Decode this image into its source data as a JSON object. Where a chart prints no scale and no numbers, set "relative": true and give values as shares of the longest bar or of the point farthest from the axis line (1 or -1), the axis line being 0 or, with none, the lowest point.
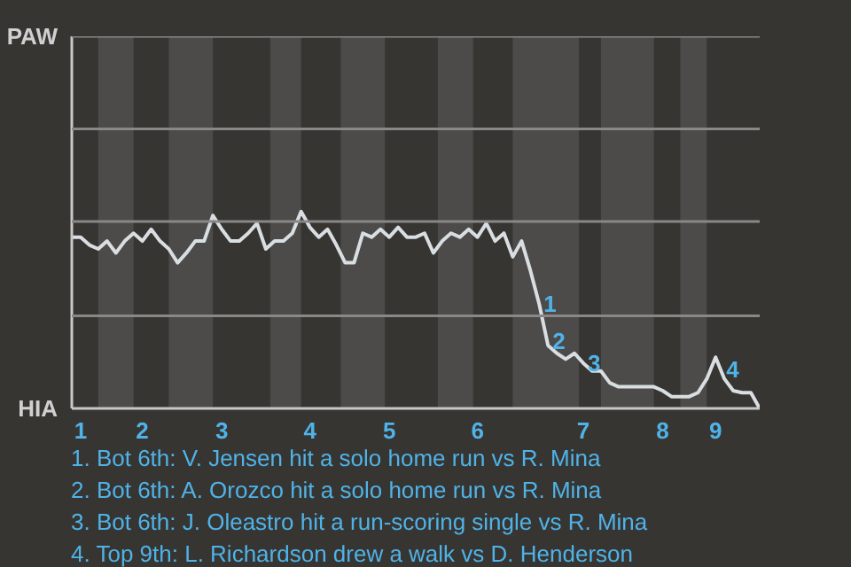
{
  "chart_data": {
    "type": "line",
    "relative": true,
    "categories": [
      null,
      "1",
      null,
      null,
      null,
      null,
      null,
      null,
      "2",
      null,
      null,
      null,
      null,
      null,
      null,
      null,
      null,
      "3",
      null,
      null,
      null,
      null,
      null,
      null,
      null,
      null,
      null,
      "4",
      null,
      null,
      null,
      null,
      null,
      null,
      null,
      null,
      "5",
      null,
      null,
      null,
      null,
      null,
      null,
      null,
      null,
      null,
      "6",
      null,
      null,
      null,
      null,
      null,
      null,
      null,
      null,
      null,
      null,
      null,
      "7",
      null,
      null,
      null,
      null,
      null,
      null,
      null,
      null,
      "8",
      null,
      null,
      null,
      null,
      null,
      "9",
      null,
      null,
      null,
      null,
      null
    ],
    "series": [
      {
        "color": "#d8dee2",
        "values": [
          0.87,
          0.87,
          0.83,
          0.81,
          0.85,
          0.79,
          0.85,
          0.89,
          0.85,
          0.91,
          0.85,
          0.81,
          0.74,
          0.79,
          0.85,
          0.85,
          0.98,
          0.91,
          0.85,
          0.85,
          0.89,
          0.94,
          0.81,
          0.85,
          0.85,
          0.89,
          1,
          0.92,
          0.87,
          0.91,
          0.83,
          0.74,
          0.74,
          0.89,
          0.87,
          0.91,
          0.87,
          0.92,
          0.87,
          0.87,
          0.89,
          0.79,
          0.85,
          0.89,
          0.87,
          0.91,
          0.87,
          0.94,
          0.85,
          0.89,
          0.77,
          0.85,
          0.7,
          0.53,
          0.32,
          0.28,
          0.25,
          0.28,
          0.23,
          0.19,
          0.19,
          0.13,
          0.11,
          0.11,
          0.11,
          0.11,
          0.11,
          0.09,
          0.06,
          0.06,
          0.06,
          0.08,
          0.15,
          0.26,
          0.15,
          0.09,
          0.08,
          0.08,
          0
        ]
      }
    ],
    "marker": "none",
    "line_style": "solid",
    "ref_lines": [
      {
        "axis": "y",
        "value": 0.47,
        "color": "#8a8886"
      },
      {
        "axis": "y",
        "value": 0.95,
        "color": "#8a8886"
      },
      {
        "axis": "y",
        "value": 1.42,
        "color": "#8a8886"
      },
      {
        "axis": "y",
        "value": 1.89,
        "color": "#8a8886"
      }
    ],
    "annotations": [
      "PAW",
      "HIA",
      {
        "text": "1",
        "y": 0.53
      },
      {
        "text": "2",
        "y": 0.34
      },
      {
        "text": "3",
        "y": 0.23
      },
      {
        "text": "4",
        "x": "9",
        "y": 0.2
      },
      "1. Bot 6th: V. Jensen hit a solo home run vs R. Mina",
      "2. Bot 6th: A. Orozco hit a solo home run vs R. Mina",
      "3. Bot 6th: J. Oleastro hit a run-scoring single vs R. Mina",
      "4. Top 9th: L. Richardson drew a walk vs D. Henderson"
    ]
  }
}
